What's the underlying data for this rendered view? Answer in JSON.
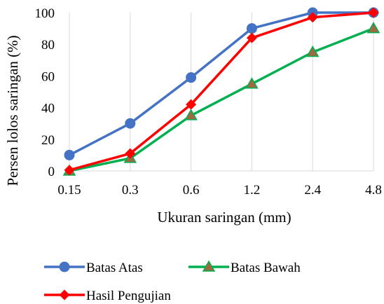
{
  "chart_data": {
    "type": "line",
    "categories": [
      "0.15",
      "0.3",
      "0.6",
      "1.2",
      "2.4",
      "4.8"
    ],
    "ylim": [
      0,
      100
    ],
    "yticks": [
      "0",
      "20",
      "40",
      "60",
      "80",
      "100"
    ],
    "xlabel": "Ukuran saringan (mm)",
    "ylabel": "Persen lolos saringan (%)",
    "grid": "vertical",
    "legend_position": "bottom",
    "series": [
      {
        "name": "Batas Atas",
        "values": [
          10,
          30,
          59,
          90,
          100,
          100
        ],
        "color": "#4472c4",
        "marker": "circle"
      },
      {
        "name": "Batas Bawah",
        "values": [
          0,
          8,
          35,
          55,
          75,
          90
        ],
        "color": "#00b050",
        "marker": "triangle"
      },
      {
        "name": "Hasil Pengujian",
        "values": [
          0.5,
          11,
          42,
          84,
          97,
          100
        ],
        "color": "#ff0000",
        "marker": "diamond"
      }
    ]
  }
}
